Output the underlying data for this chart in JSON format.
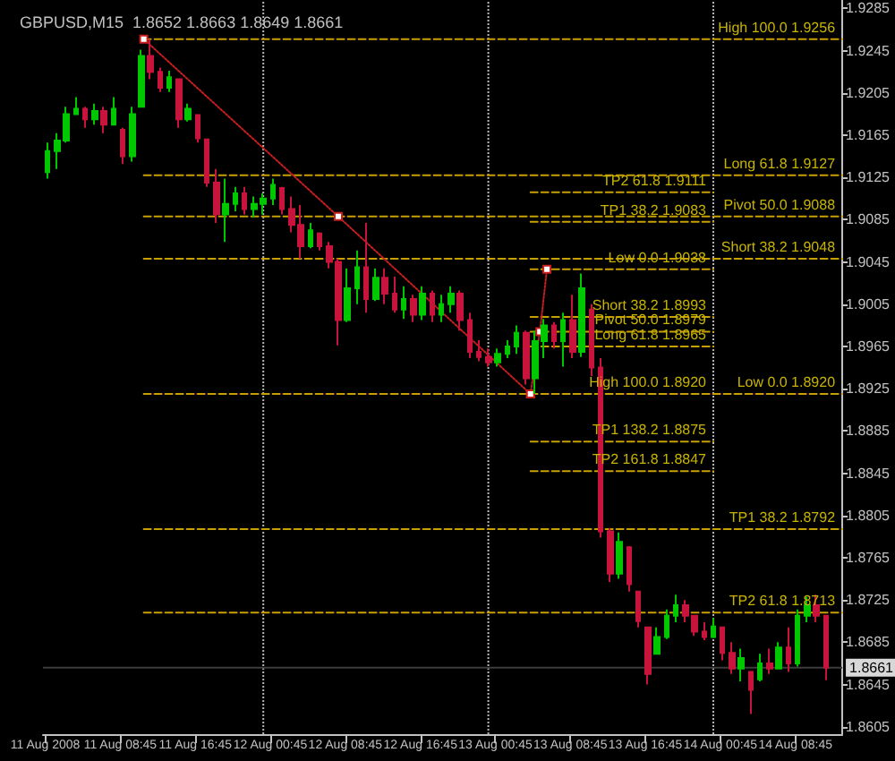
{
  "chart_data": {
    "type": "candlestick",
    "title": "GBPUSD,M15  1.8652 1.8663 1.8649 1.8661",
    "x": [
      "2008-08-11T01:00",
      "2008-08-11T02:00",
      "2008-08-11T03:00",
      "2008-08-11T04:00",
      "2008-08-11T05:00",
      "2008-08-11T06:00",
      "2008-08-11T07:00",
      "2008-08-11T08:00",
      "2008-08-11T09:00",
      "2008-08-11T10:00",
      "2008-08-11T11:00",
      "2008-08-11T12:00",
      "2008-08-11T13:00",
      "2008-08-11T14:00",
      "2008-08-11T15:00",
      "2008-08-11T16:00",
      "2008-08-11T17:00",
      "2008-08-11T18:00",
      "2008-08-11T19:00",
      "2008-08-11T20:00",
      "2008-08-11T21:00",
      "2008-08-11T22:00",
      "2008-08-11T23:00",
      "2008-08-12T00:00",
      "2008-08-12T01:00",
      "2008-08-12T02:00",
      "2008-08-12T03:00",
      "2008-08-12T04:00",
      "2008-08-12T05:00",
      "2008-08-12T06:00",
      "2008-08-12T07:00",
      "2008-08-12T08:00",
      "2008-08-12T09:00",
      "2008-08-12T10:00",
      "2008-08-12T11:00",
      "2008-08-12T12:00",
      "2008-08-12T13:00",
      "2008-08-12T14:00",
      "2008-08-12T15:00",
      "2008-08-12T16:00",
      "2008-08-12T17:00",
      "2008-08-12T18:00",
      "2008-08-12T19:00",
      "2008-08-12T20:00",
      "2008-08-12T21:00",
      "2008-08-12T22:00",
      "2008-08-12T23:00",
      "2008-08-13T00:00",
      "2008-08-13T01:00",
      "2008-08-13T02:00",
      "2008-08-13T03:00",
      "2008-08-13T04:00",
      "2008-08-13T05:00",
      "2008-08-13T06:00",
      "2008-08-13T07:00",
      "2008-08-13T08:00",
      "2008-08-13T09:00",
      "2008-08-13T10:00",
      "2008-08-13T11:00",
      "2008-08-13T12:00",
      "2008-08-13T13:00",
      "2008-08-13T14:00",
      "2008-08-13T15:00",
      "2008-08-13T16:00",
      "2008-08-13T17:00",
      "2008-08-13T18:00",
      "2008-08-13T19:00",
      "2008-08-13T20:00",
      "2008-08-13T21:00",
      "2008-08-13T22:00",
      "2008-08-13T23:00",
      "2008-08-14T00:00",
      "2008-08-14T01:00",
      "2008-08-14T02:00",
      "2008-08-14T03:00",
      "2008-08-14T04:00",
      "2008-08-14T05:00",
      "2008-08-14T06:00",
      "2008-08-14T07:00",
      "2008-08-14T08:00",
      "2008-08-14T09:00",
      "2008-08-14T10:00",
      "2008-08-14T11:00",
      "2008-08-14T12:00"
    ],
    "ohlc": [
      [
        1.913,
        1.9158,
        1.9124,
        1.915
      ],
      [
        1.915,
        1.9167,
        1.9133,
        1.916
      ],
      [
        1.916,
        1.9192,
        1.9158,
        1.9185
      ],
      [
        1.9185,
        1.9201,
        1.9184,
        1.919
      ],
      [
        1.919,
        1.9192,
        1.9172,
        1.918
      ],
      [
        1.918,
        1.9195,
        1.9175,
        1.9188
      ],
      [
        1.9188,
        1.9192,
        1.9167,
        1.9175
      ],
      [
        1.9175,
        1.9201,
        1.9175,
        1.919
      ],
      [
        1.917,
        1.9172,
        1.9138,
        1.9145
      ],
      [
        1.9145,
        1.9192,
        1.914,
        1.9185
      ],
      [
        1.9192,
        1.9246,
        1.9192,
        1.924
      ],
      [
        1.924,
        1.9256,
        1.9218,
        1.9225
      ],
      [
        1.9225,
        1.9229,
        1.9206,
        1.921
      ],
      [
        1.921,
        1.9226,
        1.9206,
        1.922
      ],
      [
        1.9218,
        1.9218,
        1.9172,
        1.918
      ],
      [
        1.918,
        1.9195,
        1.9178,
        1.919
      ],
      [
        1.9184,
        1.9184,
        1.9158,
        1.9162
      ],
      [
        1.9161,
        1.9161,
        1.9116,
        1.912
      ],
      [
        1.912,
        1.9133,
        1.9082,
        1.909
      ],
      [
        1.909,
        1.9124,
        1.9064,
        1.91
      ],
      [
        1.91,
        1.9116,
        1.9093,
        1.911
      ],
      [
        1.911,
        1.9116,
        1.909,
        1.9095
      ],
      [
        1.9095,
        1.9107,
        1.9087,
        1.91
      ],
      [
        1.91,
        1.911,
        1.909,
        1.9105
      ],
      [
        1.9105,
        1.9124,
        1.9099,
        1.9118
      ],
      [
        1.9115,
        1.9116,
        1.909,
        1.9095
      ],
      [
        1.9095,
        1.9107,
        1.9073,
        1.908
      ],
      [
        1.908,
        1.9099,
        1.9048,
        1.906
      ],
      [
        1.906,
        1.9082,
        1.9058,
        1.9075
      ],
      [
        1.9072,
        1.9073,
        1.9056,
        1.906
      ],
      [
        1.906,
        1.9064,
        1.9039,
        1.9045
      ],
      [
        1.9045,
        1.9048,
        1.8966,
        1.899
      ],
      [
        1.899,
        1.9039,
        1.8988,
        1.902
      ],
      [
        1.902,
        1.9056,
        1.9005,
        1.904
      ],
      [
        1.904,
        1.9082,
        1.8997,
        1.901
      ],
      [
        1.901,
        1.9039,
        1.9008,
        1.903
      ],
      [
        1.903,
        1.9039,
        1.9005,
        1.9015
      ],
      [
        1.9015,
        1.9031,
        1.8997,
        1.9
      ],
      [
        1.9,
        1.9022,
        1.8991,
        1.901
      ],
      [
        1.901,
        1.9014,
        1.8988,
        1.8995
      ],
      [
        1.8995,
        1.9022,
        1.899,
        1.9015
      ],
      [
        1.9015,
        1.9018,
        1.8988,
        1.8995
      ],
      [
        1.8995,
        1.9014,
        1.8988,
        1.9005
      ],
      [
        1.9005,
        1.9022,
        1.8997,
        1.9015
      ],
      [
        1.9015,
        1.9018,
        1.898,
        1.899
      ],
      [
        1.899,
        1.8997,
        1.8954,
        1.896
      ],
      [
        1.896,
        1.8971,
        1.8951,
        1.8955
      ],
      [
        1.8955,
        1.8963,
        1.8946,
        1.895
      ],
      [
        1.895,
        1.8963,
        1.8946,
        1.8958
      ],
      [
        1.8958,
        1.8971,
        1.8954,
        1.8965
      ],
      [
        1.8965,
        1.8985,
        1.8958,
        1.8978
      ],
      [
        1.8978,
        1.898,
        1.8929,
        1.8935
      ],
      [
        1.8935,
        1.898,
        1.892,
        1.897
      ],
      [
        1.897,
        1.8991,
        1.8954,
        1.8985
      ],
      [
        1.8985,
        1.8988,
        1.8963,
        1.897
      ],
      [
        1.897,
        1.8997,
        1.8946,
        1.899
      ],
      [
        1.899,
        1.9014,
        1.8954,
        1.896
      ],
      [
        1.896,
        1.9034,
        1.8955,
        1.902
      ],
      [
        1.9,
        1.9005,
        1.8937,
        1.8945
      ],
      [
        1.8945,
        1.8954,
        1.8784,
        1.879
      ],
      [
        1.879,
        1.8793,
        1.8742,
        1.875
      ],
      [
        1.875,
        1.8789,
        1.8745,
        1.878
      ],
      [
        1.8775,
        1.8776,
        1.8733,
        1.874
      ],
      [
        1.8733,
        1.8733,
        1.8699,
        1.8705
      ],
      [
        1.8699,
        1.8699,
        1.8645,
        1.8655
      ],
      [
        1.8674,
        1.8699,
        1.8674,
        1.869
      ],
      [
        1.869,
        1.8716,
        1.8688,
        1.871
      ],
      [
        1.871,
        1.873,
        1.8704,
        1.872
      ],
      [
        1.872,
        1.8725,
        1.8704,
        1.871
      ],
      [
        1.871,
        1.8711,
        1.8691,
        1.8695
      ],
      [
        1.8695,
        1.8704,
        1.8687,
        1.869
      ],
      [
        1.869,
        1.8708,
        1.8689,
        1.87
      ],
      [
        1.8699,
        1.8699,
        1.8668,
        1.8675
      ],
      [
        1.8675,
        1.8685,
        1.8655,
        1.866
      ],
      [
        1.866,
        1.8679,
        1.8648,
        1.867
      ],
      [
        1.8657,
        1.8657,
        1.8617,
        1.864
      ],
      [
        1.865,
        1.8674,
        1.8648,
        1.8665
      ],
      [
        1.8665,
        1.8679,
        1.8655,
        1.866
      ],
      [
        1.866,
        1.8685,
        1.866,
        1.868
      ],
      [
        1.868,
        1.8699,
        1.8657,
        1.8665
      ],
      [
        1.8665,
        1.8716,
        1.8662,
        1.871
      ],
      [
        1.871,
        1.8728,
        1.8704,
        1.872
      ],
      [
        1.872,
        1.873,
        1.8704,
        1.871
      ],
      [
        1.871,
        1.8711,
        1.8649,
        1.8661
      ]
    ],
    "colors": [
      "#00c800",
      "#00c800",
      "#00c800",
      "#00c800",
      "#c8143c",
      "#00c800",
      "#c8143c",
      "#00c800",
      "#c8143c",
      "#00c800",
      "#00c800",
      "#c8143c",
      "#c8143c",
      "#00c800",
      "#c8143c",
      "#00c800",
      "#c8143c",
      "#c8143c",
      "#c8143c",
      "#00c800",
      "#00c800",
      "#c8143c",
      "#00c800",
      "#00c800",
      "#00c800",
      "#c8143c",
      "#c8143c",
      "#c8143c",
      "#00c800",
      "#c8143c",
      "#c8143c",
      "#c8143c",
      "#00c800",
      "#00c800",
      "#c8143c",
      "#00c800",
      "#c8143c",
      "#c8143c",
      "#00c800",
      "#c8143c",
      "#00c800",
      "#c8143c",
      "#00c800",
      "#00c800",
      "#c8143c",
      "#c8143c",
      "#c8143c",
      "#c8143c",
      "#00c800",
      "#00c800",
      "#00c800",
      "#c8143c",
      "#00c800",
      "#00c800",
      "#c8143c",
      "#00c800",
      "#c8143c",
      "#00c800",
      "#c8143c",
      "#c8143c",
      "#c8143c",
      "#00c800",
      "#c8143c",
      "#c8143c",
      "#c8143c",
      "#00c800",
      "#00c800",
      "#00c800",
      "#c8143c",
      "#c8143c",
      "#c8143c",
      "#00c800",
      "#c8143c",
      "#c8143c",
      "#00c800",
      "#c8143c",
      "#00c800",
      "#c8143c",
      "#00c800",
      "#c8143c",
      "#00c800",
      "#00c800",
      "#c8143c",
      "#c8143c"
    ],
    "series": [
      {
        "type": "line",
        "x": [
          "2008-08-11T11:15",
          "2008-08-14T13:45"
        ],
        "values": [
          1.9256,
          1.9256
        ],
        "color": "#c8a000",
        "line_style": "dashed",
        "marker": "none"
      },
      {
        "type": "line",
        "x": [
          "2008-08-11T11:15",
          "2008-08-14T13:45"
        ],
        "values": [
          1.9127,
          1.9127
        ],
        "color": "#c8a000",
        "line_style": "dashed",
        "marker": "none"
      },
      {
        "type": "line",
        "x": [
          "2008-08-11T11:15",
          "2008-08-14T13:45"
        ],
        "values": [
          1.9088,
          1.9088
        ],
        "color": "#c8a000",
        "line_style": "dashed",
        "marker": "none"
      },
      {
        "type": "line",
        "x": [
          "2008-08-11T11:15",
          "2008-08-14T13:45"
        ],
        "values": [
          1.9048,
          1.9048
        ],
        "color": "#c8a000",
        "line_style": "dashed",
        "marker": "none"
      },
      {
        "type": "line",
        "x": [
          "2008-08-11T11:15",
          "2008-08-14T13:45"
        ],
        "values": [
          1.892,
          1.892
        ],
        "color": "#c8a000",
        "line_style": "dashed",
        "marker": "none"
      },
      {
        "type": "line",
        "x": [
          "2008-08-11T11:15",
          "2008-08-14T13:45"
        ],
        "values": [
          1.8792,
          1.8792
        ],
        "color": "#c8a000",
        "line_style": "dashed",
        "marker": "none"
      },
      {
        "type": "line",
        "x": [
          "2008-08-11T11:15",
          "2008-08-14T13:45"
        ],
        "values": [
          1.8713,
          1.8713
        ],
        "color": "#c8a000",
        "line_style": "dashed",
        "marker": "none"
      },
      {
        "type": "line",
        "x": [
          "2008-08-13T04:30",
          "2008-08-14T00:00"
        ],
        "values": [
          1.9111,
          1.9111
        ],
        "color": "#c8a000",
        "line_style": "dashed",
        "marker": "none"
      },
      {
        "type": "line",
        "x": [
          "2008-08-13T04:30",
          "2008-08-14T00:00"
        ],
        "values": [
          1.9083,
          1.9083
        ],
        "color": "#c8a000",
        "line_style": "dashed",
        "marker": "none"
      },
      {
        "type": "line",
        "x": [
          "2008-08-13T04:30",
          "2008-08-14T00:00"
        ],
        "values": [
          1.9038,
          1.9038
        ],
        "color": "#c8a000",
        "line_style": "dashed",
        "marker": "none"
      },
      {
        "type": "line",
        "x": [
          "2008-08-13T04:30",
          "2008-08-14T00:00"
        ],
        "values": [
          1.8993,
          1.8993
        ],
        "color": "#c8a000",
        "line_style": "dashed",
        "marker": "none"
      },
      {
        "type": "line",
        "x": [
          "2008-08-13T04:30",
          "2008-08-14T00:00"
        ],
        "values": [
          1.8979,
          1.8979
        ],
        "color": "#c8a000",
        "line_style": "dashed",
        "marker": "none"
      },
      {
        "type": "line",
        "x": [
          "2008-08-13T04:30",
          "2008-08-14T00:00"
        ],
        "values": [
          1.8965,
          1.8965
        ],
        "color": "#c8a000",
        "line_style": "dashed",
        "marker": "none"
      },
      {
        "type": "line",
        "x": [
          "2008-08-13T04:30",
          "2008-08-14T00:00"
        ],
        "values": [
          1.8875,
          1.8875
        ],
        "color": "#c8a000",
        "line_style": "dashed",
        "marker": "none"
      },
      {
        "type": "line",
        "x": [
          "2008-08-13T04:30",
          "2008-08-14T00:00"
        ],
        "values": [
          1.8847,
          1.8847
        ],
        "color": "#c8a000",
        "line_style": "dashed",
        "marker": "none"
      },
      {
        "type": "line",
        "x": [
          "2008-08-11T11:15",
          "2008-08-12T08:00",
          "2008-08-13T04:30"
        ],
        "values": [
          1.9256,
          1.9088,
          1.892
        ],
        "color": "#c81e1e",
        "line_style": "dotted",
        "marker": "square"
      },
      {
        "type": "line",
        "x": [
          "2008-08-13T04:30",
          "2008-08-13T05:30",
          "2008-08-13T06:15"
        ],
        "values": [
          1.892,
          1.8979,
          1.9038
        ],
        "color": "#c81e1e",
        "line_style": "dotted",
        "marker": "square"
      }
    ],
    "annotations": [
      {
        "text": "High 100.0 1.9256",
        "x": "2008-08-14T13:45",
        "y": 1.9256
      },
      {
        "text": "Long 61.8 1.9127",
        "x": "2008-08-14T13:45",
        "y": 1.9127
      },
      {
        "text": "Pivot 50.0 1.9088",
        "x": "2008-08-14T13:45",
        "y": 1.9088
      },
      {
        "text": "Short 38.2 1.9048",
        "x": "2008-08-14T13:45",
        "y": 1.9048
      },
      {
        "text": "Low 0.0 1.8920",
        "x": "2008-08-14T13:45",
        "y": 1.892
      },
      {
        "text": "TP1 38.2 1.8792",
        "x": "2008-08-14T13:45",
        "y": 1.8792
      },
      {
        "text": "TP2 61.8 1.8713",
        "x": "2008-08-14T13:45",
        "y": 1.8713
      },
      {
        "text": "TP2 61.8 1.9111",
        "x": "2008-08-14T00:00",
        "y": 1.9111
      },
      {
        "text": "TP1 38.2 1.9083",
        "x": "2008-08-14T00:00",
        "y": 1.9083
      },
      {
        "text": "Low 0.0 1.9038",
        "x": "2008-08-14T00:00",
        "y": 1.9038
      },
      {
        "text": "Short 38.2 1.8993",
        "x": "2008-08-14T00:00",
        "y": 1.8993
      },
      {
        "text": "Pivot 50.0 1.8979",
        "x": "2008-08-14T00:00",
        "y": 1.8979
      },
      {
        "text": "Long 61.8 1.8965",
        "x": "2008-08-14T00:00",
        "y": 1.8965
      },
      {
        "text": "High 100.0 1.8920",
        "x": "2008-08-14T00:00",
        "y": 1.892
      },
      {
        "text": "TP1 138.2 1.8875",
        "x": "2008-08-14T00:00",
        "y": 1.8875
      },
      {
        "text": "TP2 161.8 1.8847",
        "x": "2008-08-14T00:00",
        "y": 1.8847
      }
    ],
    "ref_lines": [
      {
        "axis": "x",
        "value": "2008-08-12T00:00",
        "label": null,
        "color": "#b4b4b4",
        "line_style": "dotted"
      },
      {
        "axis": "x",
        "value": "2008-08-13T00:00",
        "label": null,
        "color": "#b4b4b4",
        "line_style": "dotted"
      },
      {
        "axis": "x",
        "value": "2008-08-14T00:00",
        "label": null,
        "color": "#b4b4b4",
        "line_style": "dotted"
      },
      {
        "axis": "y",
        "value": 1.8661,
        "label": "1.8661",
        "color": "#3c3c3c",
        "line_style": "solid"
      }
    ],
    "xlim": [
      "2008-08-11T00:30",
      "2008-08-14T13:45"
    ],
    "xticks": [
      {
        "value": "2008-08-11T00:45",
        "label": "11 Aug 2008"
      },
      {
        "value": "2008-08-11T08:45",
        "label": "11 Aug 08:45"
      },
      {
        "value": "2008-08-11T16:45",
        "label": "11 Aug 16:45"
      },
      {
        "value": "2008-08-12T00:45",
        "label": "12 Aug 00:45"
      },
      {
        "value": "2008-08-12T08:45",
        "label": "12 Aug 08:45"
      },
      {
        "value": "2008-08-12T16:45",
        "label": "12 Aug 16:45"
      },
      {
        "value": "2008-08-13T00:45",
        "label": "13 Aug 00:45"
      },
      {
        "value": "2008-08-13T08:45",
        "label": "13 Aug 08:45"
      },
      {
        "value": "2008-08-13T16:45",
        "label": "13 Aug 16:45"
      },
      {
        "value": "2008-08-14T00:45",
        "label": "14 Aug 00:45"
      },
      {
        "value": "2008-08-14T08:45",
        "label": "14 Aug 08:45"
      }
    ],
    "ylim": [
      1.8598,
      1.9293
    ],
    "yticks": [
      1.8605,
      1.8645,
      1.8685,
      1.8725,
      1.8765,
      1.8805,
      1.8845,
      1.8885,
      1.8925,
      1.8965,
      1.9005,
      1.9045,
      1.9085,
      1.9125,
      1.9165,
      1.9205,
      1.9245,
      1.9285
    ],
    "grid": false
  }
}
